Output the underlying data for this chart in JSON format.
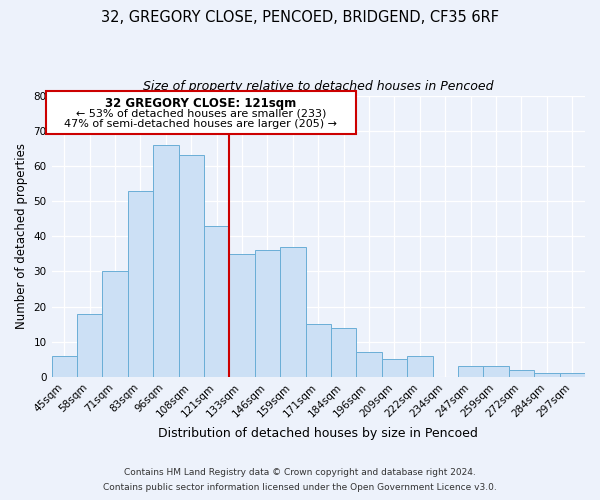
{
  "title1": "32, GREGORY CLOSE, PENCOED, BRIDGEND, CF35 6RF",
  "title2": "Size of property relative to detached houses in Pencoed",
  "xlabel": "Distribution of detached houses by size in Pencoed",
  "ylabel": "Number of detached properties",
  "categories": [
    "45sqm",
    "58sqm",
    "71sqm",
    "83sqm",
    "96sqm",
    "108sqm",
    "121sqm",
    "133sqm",
    "146sqm",
    "159sqm",
    "171sqm",
    "184sqm",
    "196sqm",
    "209sqm",
    "222sqm",
    "234sqm",
    "247sqm",
    "259sqm",
    "272sqm",
    "284sqm",
    "297sqm"
  ],
  "values": [
    6,
    18,
    30,
    53,
    66,
    63,
    43,
    35,
    36,
    37,
    15,
    14,
    7,
    5,
    6,
    0,
    3,
    3,
    2,
    1,
    1
  ],
  "bar_color": "#cce0f5",
  "bar_edge_color": "#6aaed6",
  "highlight_label": "32 GREGORY CLOSE: 121sqm",
  "annotation_line1": "← 53% of detached houses are smaller (233)",
  "annotation_line2": "47% of semi-detached houses are larger (205) →",
  "box_facecolor": "#ffffff",
  "box_edgecolor": "#cc0000",
  "red_line_color": "#cc0000",
  "ylim": [
    0,
    80
  ],
  "yticks": [
    0,
    10,
    20,
    30,
    40,
    50,
    60,
    70,
    80
  ],
  "footer1": "Contains HM Land Registry data © Crown copyright and database right 2024.",
  "footer2": "Contains public sector information licensed under the Open Government Licence v3.0.",
  "bg_color": "#edf2fb"
}
